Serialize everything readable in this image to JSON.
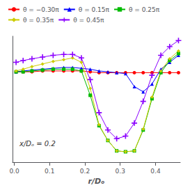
{
  "chart_data": {
    "type": "line",
    "xlabel": "r/Dₒ",
    "annotation": "x/Dₒ = 0.2",
    "xlim": [
      -0.005,
      0.47
    ],
    "ylim": [
      -0.95,
      0.5
    ],
    "xticks": [
      {
        "value": 0.0,
        "label": "0.0"
      },
      0.1,
      0.2,
      0.3,
      0.4
    ],
    "tick_labels": "x",
    "grid": false,
    "legend": "upper left",
    "x": [
      0.005,
      0.025,
      0.05,
      0.08,
      0.11,
      0.14,
      0.165,
      0.19,
      0.215,
      0.24,
      0.265,
      0.29,
      0.315,
      0.34,
      0.365,
      0.39,
      0.415,
      0.44,
      0.465
    ],
    "series": [
      {
        "name": "θ = −0.30π",
        "color": "#FF0000",
        "marker": "circle",
        "values": [
          0.09,
          0.09,
          0.09,
          0.1,
          0.1,
          0.1,
          0.1,
          0.1,
          0.09,
          0.08,
          0.08,
          0.08,
          0.08,
          0.08,
          0.08,
          0.08,
          0.08,
          0.08,
          0.08
        ]
      },
      {
        "name": "θ = 0.15π",
        "color": "#0000FF",
        "marker": "triangle",
        "values": [
          0.09,
          0.1,
          0.11,
          0.12,
          0.13,
          0.14,
          0.14,
          0.13,
          0.12,
          0.1,
          0.09,
          0.08,
          0.07,
          -0.08,
          -0.14,
          -0.05,
          0.12,
          0.2,
          0.28
        ]
      },
      {
        "name": "θ = 0.25π",
        "color": "#00BB00",
        "marker": "square",
        "values": [
          0.09,
          0.09,
          0.1,
          0.11,
          0.12,
          0.12,
          0.12,
          0.1,
          -0.18,
          -0.53,
          -0.7,
          -0.82,
          -0.83,
          -0.82,
          -0.58,
          -0.22,
          0.08,
          0.22,
          0.3
        ]
      },
      {
        "name": "θ = 0.35π",
        "color": "#CCCC00",
        "marker": "diamond",
        "values": [
          0.1,
          0.12,
          0.15,
          0.18,
          0.21,
          0.23,
          0.25,
          0.2,
          -0.1,
          -0.52,
          -0.7,
          -0.82,
          -0.83,
          -0.82,
          -0.57,
          -0.2,
          0.1,
          0.24,
          0.33
        ]
      },
      {
        "name": "θ = 0.45π",
        "color": "#8B00FF",
        "marker": "plus",
        "values": [
          0.2,
          0.22,
          0.24,
          0.26,
          0.28,
          0.29,
          0.29,
          0.25,
          0.0,
          -0.38,
          -0.58,
          -0.68,
          -0.65,
          -0.5,
          -0.25,
          0.05,
          0.28,
          0.38,
          0.45
        ]
      }
    ]
  }
}
